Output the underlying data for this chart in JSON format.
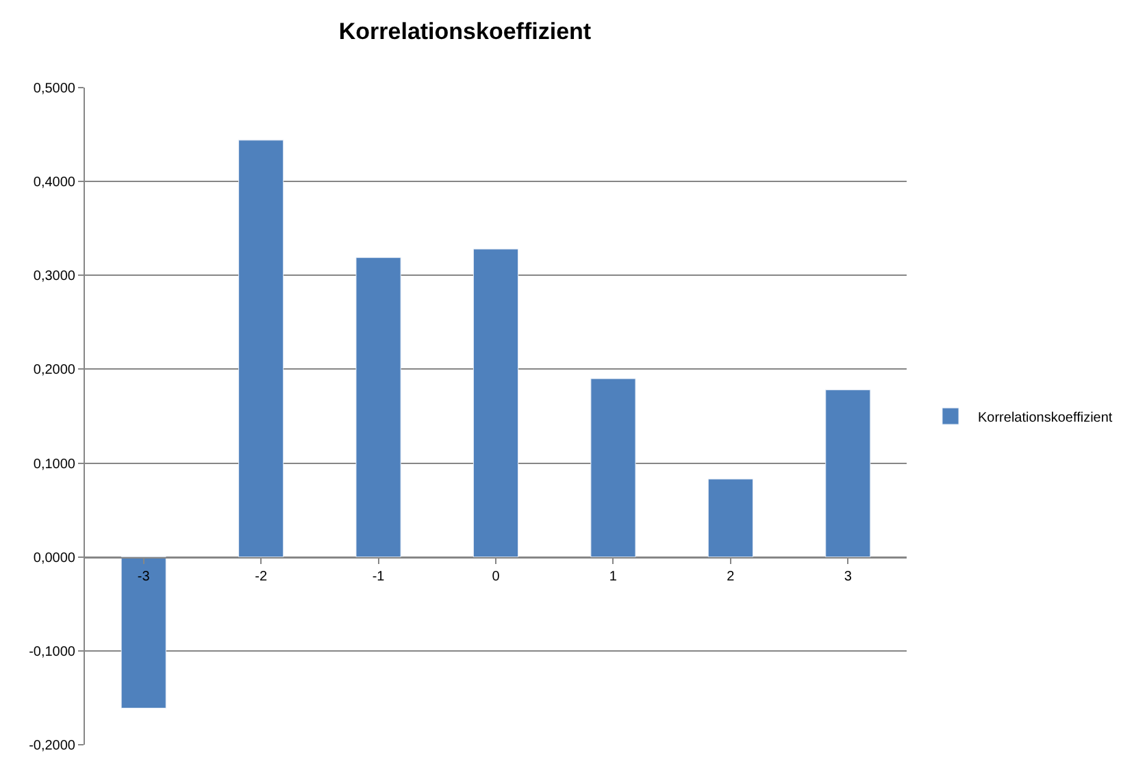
{
  "chart_data": {
    "type": "bar",
    "title": "Korrelationskoeffizient",
    "categories": [
      "-3",
      "-2",
      "-1",
      "0",
      "1",
      "2",
      "3"
    ],
    "series": [
      {
        "name": "Korrelationskoeffizient",
        "color": "#4f81bd",
        "values": [
          -0.161,
          0.444,
          0.319,
          0.328,
          0.19,
          0.083,
          0.178
        ]
      }
    ],
    "ylim": [
      -0.2,
      0.5
    ],
    "yticks": [
      {
        "value": -0.2,
        "label": "-0,2000"
      },
      {
        "value": -0.1,
        "label": "-0,1000"
      },
      {
        "value": 0,
        "label": "0,0000"
      },
      {
        "value": 0.1,
        "label": "0,1000"
      },
      {
        "value": 0.2,
        "label": "0,2000"
      },
      {
        "value": 0.3,
        "label": "0,3000"
      },
      {
        "value": 0.4,
        "label": "0,4000"
      },
      {
        "value": 0.5,
        "label": "0,5000"
      }
    ],
    "grid": "y",
    "legend": "right"
  }
}
